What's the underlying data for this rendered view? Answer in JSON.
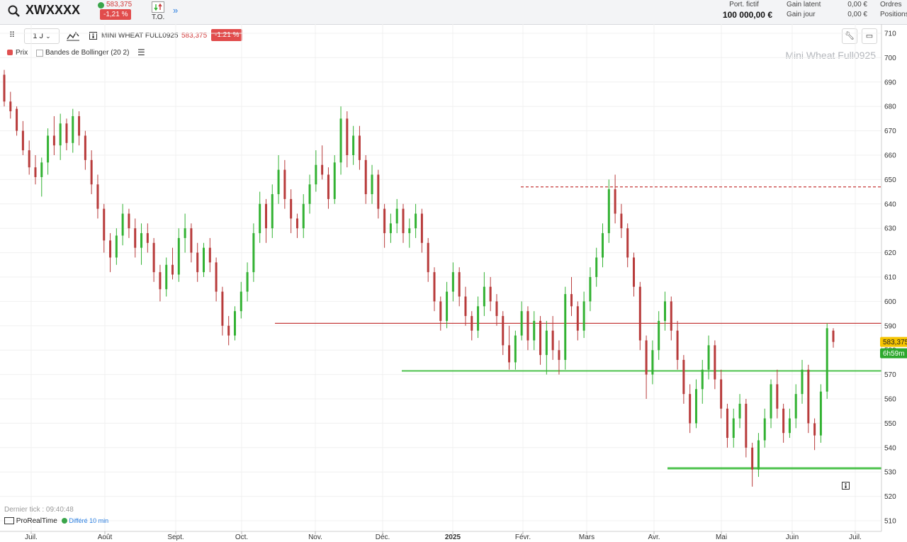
{
  "header": {
    "symbol": "XWXXXX",
    "quote_price": "583,375",
    "quote_change": "-1,21 %",
    "to_label": "T.O.",
    "expand_icon": "double-chevron-right-icon",
    "portfolio_label": "Port. fictif",
    "portfolio_value": "100 000,00 €",
    "gain_latent_label": "Gain latent",
    "gain_jour_label": "Gain jour",
    "gain_latent_value": "0,00 €",
    "gain_jour_value": "0,00 €",
    "ordres_label": "Ordres",
    "positions_label": "Positions"
  },
  "toolbar": {
    "period": "1 J",
    "instrument_name": "MINI WHEAT FULL0925",
    "instrument_price": "583,375",
    "instrument_change": "-1.21 %"
  },
  "legend": {
    "price_label": "Prix",
    "bollinger_label": "Bandes de Bollinger (20 2)"
  },
  "watermark": "Mini Wheat Full0925",
  "footer": {
    "last_tick": "Dernier tick : 09:40:48",
    "provider": "ProRealTime",
    "delay": "Différé 10 min"
  },
  "colors": {
    "up": "#33b233",
    "down": "#b83b3b",
    "resistance": "#c53a3a",
    "support": "#4cc24c",
    "price_tag": "#f5c400",
    "timer_tag": "#2da82d"
  },
  "chart_data": {
    "type": "candlestick",
    "title": "Mini Wheat Full0925",
    "x_ticks": [
      "Juil.",
      "Août",
      "Sept.",
      "Oct.",
      "Nov.",
      "Déc.",
      "2025",
      "Févr.",
      "Mars",
      "Avr.",
      "Mai",
      "Juin",
      "Juil."
    ],
    "ylim": [
      505,
      712
    ],
    "y_ticks": [
      510,
      520,
      530,
      540,
      550,
      560,
      570,
      580,
      590,
      600,
      610,
      620,
      630,
      640,
      650,
      660,
      670,
      680,
      690,
      700,
      710
    ],
    "last_price": "583,375",
    "timer": "6h59m",
    "levels": [
      {
        "name": "resistance-dashed",
        "value": 647,
        "style": "dashed",
        "from": "Févr."
      },
      {
        "name": "resistance",
        "value": 591,
        "style": "solid",
        "from": "Nov."
      },
      {
        "name": "support-upper",
        "value": 571.5,
        "style": "solid",
        "from": "Déc."
      },
      {
        "name": "support-lower",
        "value": 531.5,
        "style": "solid",
        "from": "Avr."
      }
    ],
    "candles": [
      [
        693,
        695,
        680,
        682
      ],
      [
        682,
        686,
        675,
        678
      ],
      [
        679,
        680,
        668,
        670
      ],
      [
        670,
        674,
        660,
        662
      ],
      [
        662,
        666,
        652,
        655
      ],
      [
        655,
        660,
        648,
        651
      ],
      [
        651,
        659,
        643,
        657
      ],
      [
        657,
        671,
        652,
        668
      ],
      [
        668,
        676,
        660,
        664
      ],
      [
        664,
        677,
        658,
        673
      ],
      [
        673,
        675,
        662,
        665
      ],
      [
        665,
        679,
        661,
        676
      ],
      [
        676,
        678,
        664,
        668
      ],
      [
        668,
        670,
        654,
        658
      ],
      [
        658,
        662,
        644,
        648
      ],
      [
        648,
        652,
        634,
        638
      ],
      [
        638,
        640,
        620,
        625
      ],
      [
        625,
        628,
        612,
        618
      ],
      [
        618,
        630,
        615,
        627
      ],
      [
        627,
        640,
        623,
        636
      ],
      [
        636,
        638,
        626,
        630
      ],
      [
        630,
        634,
        618,
        622
      ],
      [
        622,
        632,
        615,
        628
      ],
      [
        628,
        632,
        620,
        624
      ],
      [
        624,
        626,
        608,
        612
      ],
      [
        612,
        615,
        600,
        605
      ],
      [
        605,
        618,
        602,
        615
      ],
      [
        615,
        622,
        609,
        611
      ],
      [
        611,
        630,
        608,
        626
      ],
      [
        626,
        636,
        620,
        630
      ],
      [
        630,
        632,
        616,
        620
      ],
      [
        620,
        624,
        608,
        612
      ],
      [
        612,
        624,
        610,
        622
      ],
      [
        622,
        626,
        612,
        616
      ],
      [
        616,
        618,
        600,
        604
      ],
      [
        604,
        606,
        586,
        590
      ],
      [
        590,
        594,
        582,
        586
      ],
      [
        586,
        598,
        584,
        596
      ],
      [
        596,
        608,
        593,
        604
      ],
      [
        604,
        616,
        600,
        612
      ],
      [
        612,
        632,
        608,
        628
      ],
      [
        628,
        645,
        624,
        640
      ],
      [
        640,
        642,
        624,
        630
      ],
      [
        630,
        648,
        626,
        644
      ],
      [
        644,
        660,
        640,
        654
      ],
      [
        654,
        658,
        638,
        642
      ],
      [
        642,
        646,
        628,
        634
      ],
      [
        634,
        636,
        626,
        630
      ],
      [
        630,
        644,
        626,
        640
      ],
      [
        640,
        652,
        636,
        648
      ],
      [
        648,
        662,
        645,
        656
      ],
      [
        656,
        664,
        650,
        652
      ],
      [
        652,
        655,
        638,
        642
      ],
      [
        642,
        660,
        640,
        657
      ],
      [
        657,
        680,
        652,
        675
      ],
      [
        675,
        678,
        655,
        660
      ],
      [
        660,
        672,
        656,
        668
      ],
      [
        668,
        672,
        654,
        658
      ],
      [
        658,
        660,
        640,
        644
      ],
      [
        644,
        656,
        640,
        652
      ],
      [
        652,
        654,
        634,
        638
      ],
      [
        638,
        640,
        622,
        628
      ],
      [
        628,
        636,
        624,
        632
      ],
      [
        632,
        642,
        628,
        638
      ],
      [
        638,
        640,
        624,
        628
      ],
      [
        628,
        634,
        622,
        630
      ],
      [
        630,
        640,
        626,
        636
      ],
      [
        636,
        638,
        620,
        624
      ],
      [
        624,
        626,
        608,
        612
      ],
      [
        612,
        614,
        596,
        600
      ],
      [
        600,
        602,
        588,
        592
      ],
      [
        592,
        608,
        589,
        604
      ],
      [
        604,
        616,
        600,
        612
      ],
      [
        612,
        614,
        598,
        602
      ],
      [
        602,
        606,
        590,
        594
      ],
      [
        594,
        596,
        584,
        588
      ],
      [
        588,
        602,
        585,
        598
      ],
      [
        598,
        612,
        594,
        606
      ],
      [
        606,
        610,
        596,
        600
      ],
      [
        600,
        603,
        590,
        594
      ],
      [
        594,
        596,
        578,
        582
      ],
      [
        582,
        590,
        572,
        575
      ],
      [
        575,
        588,
        572,
        586
      ],
      [
        586,
        600,
        584,
        596
      ],
      [
        596,
        598,
        580,
        584
      ],
      [
        584,
        596,
        580,
        592
      ],
      [
        592,
        594,
        574,
        578
      ],
      [
        578,
        592,
        570,
        588
      ],
      [
        588,
        594,
        576,
        580
      ],
      [
        580,
        584,
        570,
        576
      ],
      [
        576,
        606,
        572,
        603
      ],
      [
        603,
        610,
        594,
        598
      ],
      [
        598,
        600,
        584,
        588
      ],
      [
        588,
        604,
        585,
        600
      ],
      [
        600,
        614,
        596,
        610
      ],
      [
        610,
        622,
        606,
        618
      ],
      [
        618,
        632,
        614,
        628
      ],
      [
        628,
        650,
        624,
        646
      ],
      [
        646,
        652,
        632,
        636
      ],
      [
        636,
        640,
        626,
        630
      ],
      [
        630,
        632,
        614,
        618
      ],
      [
        618,
        620,
        602,
        606
      ],
      [
        606,
        608,
        580,
        584
      ],
      [
        584,
        586,
        560,
        570
      ],
      [
        570,
        584,
        566,
        580
      ],
      [
        580,
        596,
        576,
        592
      ],
      [
        592,
        604,
        588,
        600
      ],
      [
        600,
        602,
        584,
        588
      ],
      [
        588,
        592,
        572,
        576
      ],
      [
        576,
        578,
        558,
        562
      ],
      [
        562,
        566,
        546,
        550
      ],
      [
        550,
        568,
        548,
        564
      ],
      [
        564,
        576,
        558,
        572
      ],
      [
        572,
        586,
        568,
        582
      ],
      [
        582,
        584,
        564,
        568
      ],
      [
        568,
        572,
        552,
        556
      ],
      [
        556,
        558,
        540,
        544
      ],
      [
        544,
        556,
        540,
        552
      ],
      [
        552,
        562,
        548,
        558
      ],
      [
        558,
        560,
        536,
        540
      ],
      [
        540,
        542,
        524,
        531
      ],
      [
        531,
        546,
        528,
        543
      ],
      [
        543,
        556,
        540,
        552
      ],
      [
        552,
        568,
        548,
        566
      ],
      [
        566,
        572,
        552,
        556
      ],
      [
        556,
        558,
        542,
        546
      ],
      [
        546,
        556,
        544,
        552
      ],
      [
        552,
        566,
        548,
        562
      ],
      [
        562,
        576,
        558,
        572
      ],
      [
        572,
        574,
        546,
        550
      ],
      [
        550,
        552,
        539,
        545
      ],
      [
        545,
        566,
        542,
        563
      ],
      [
        563,
        591,
        560,
        589
      ],
      [
        588,
        589,
        581,
        583.375
      ]
    ]
  }
}
